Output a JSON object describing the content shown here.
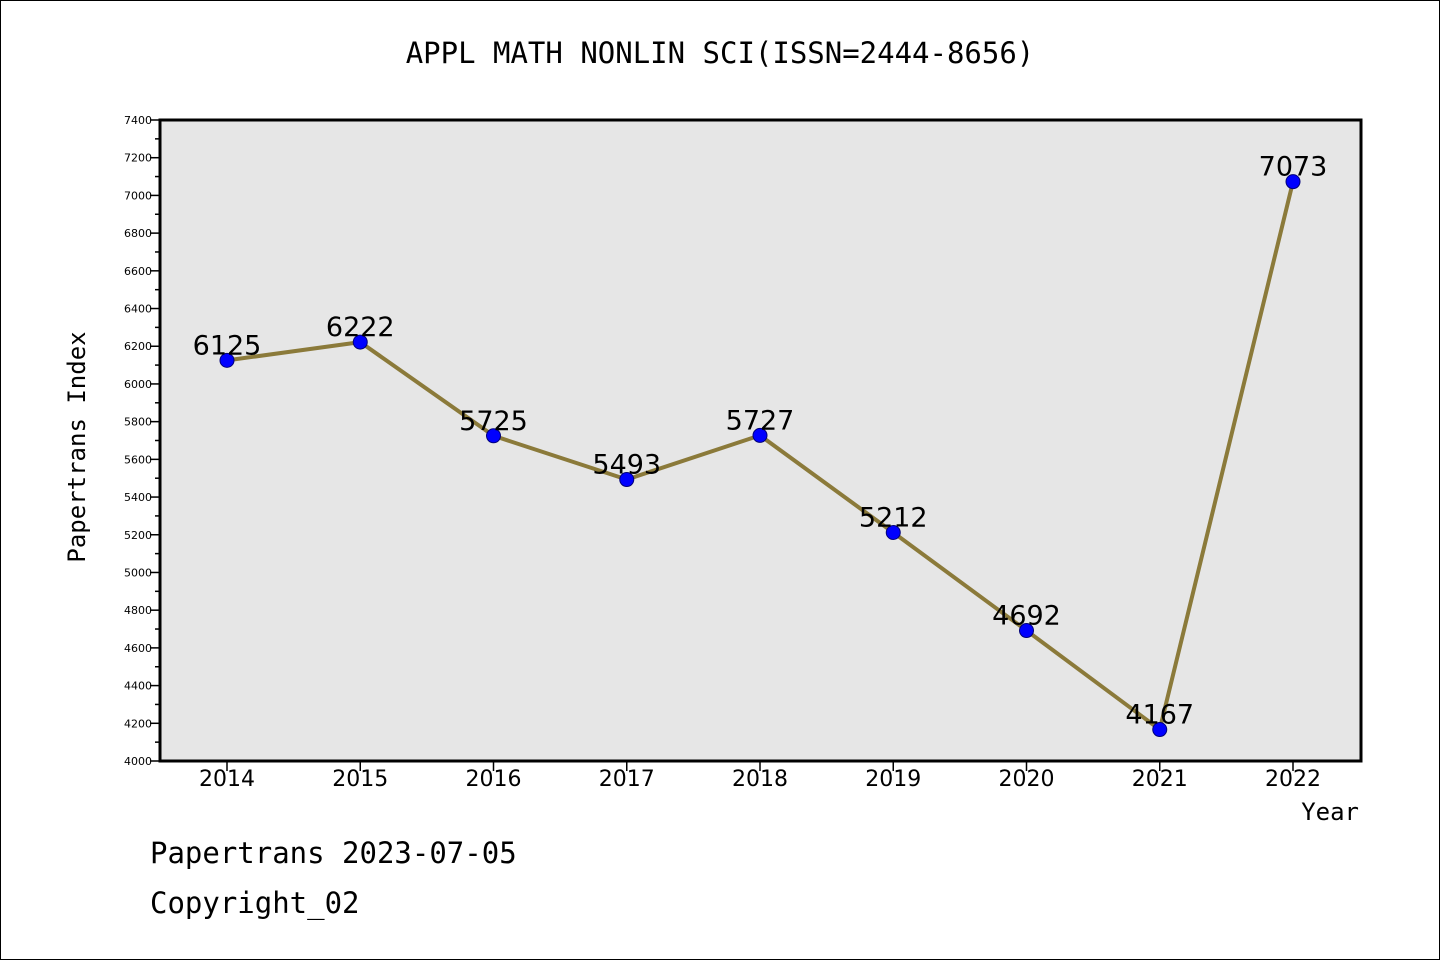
{
  "chart_data": {
    "type": "line",
    "title": "APPL MATH NONLIN SCI(ISSN=2444-8656)",
    "xlabel": "Year",
    "ylabel": "Papertrans Index",
    "categories": [
      "2014",
      "2015",
      "2016",
      "2017",
      "2018",
      "2019",
      "2020",
      "2021",
      "2022"
    ],
    "series": [
      {
        "values": [
          6125,
          6222,
          5725,
          5493,
          5727,
          5212,
          4692,
          4167,
          7073
        ],
        "line_color": "#8b7a3a",
        "marker_color": "#0000ff"
      }
    ],
    "data_labels": [
      "6125",
      "6222",
      "5725",
      "5493",
      "5727",
      "5212",
      "4692",
      "4167",
      "7073"
    ],
    "ylim": [
      4000,
      7400
    ],
    "yticks": [
      4000,
      4200,
      4400,
      4600,
      4800,
      5000,
      5200,
      5400,
      5600,
      5800,
      6000,
      6200,
      6400,
      6600,
      6800,
      7000,
      7200,
      7400
    ],
    "ytick_labels": [
      "4000",
      "4200",
      "4400",
      "4600",
      "4800",
      "5000",
      "5200",
      "5400",
      "5600",
      "5800",
      "6000",
      "6200",
      "6400",
      "6600",
      "6800",
      "7000",
      "7200",
      "7400"
    ],
    "grid": false,
    "legend": "none",
    "plot_background": "#e6e6e6"
  },
  "footer": {
    "date_text": "Papertrans 2023-07-05",
    "copyright_text": "Copyright_02"
  }
}
